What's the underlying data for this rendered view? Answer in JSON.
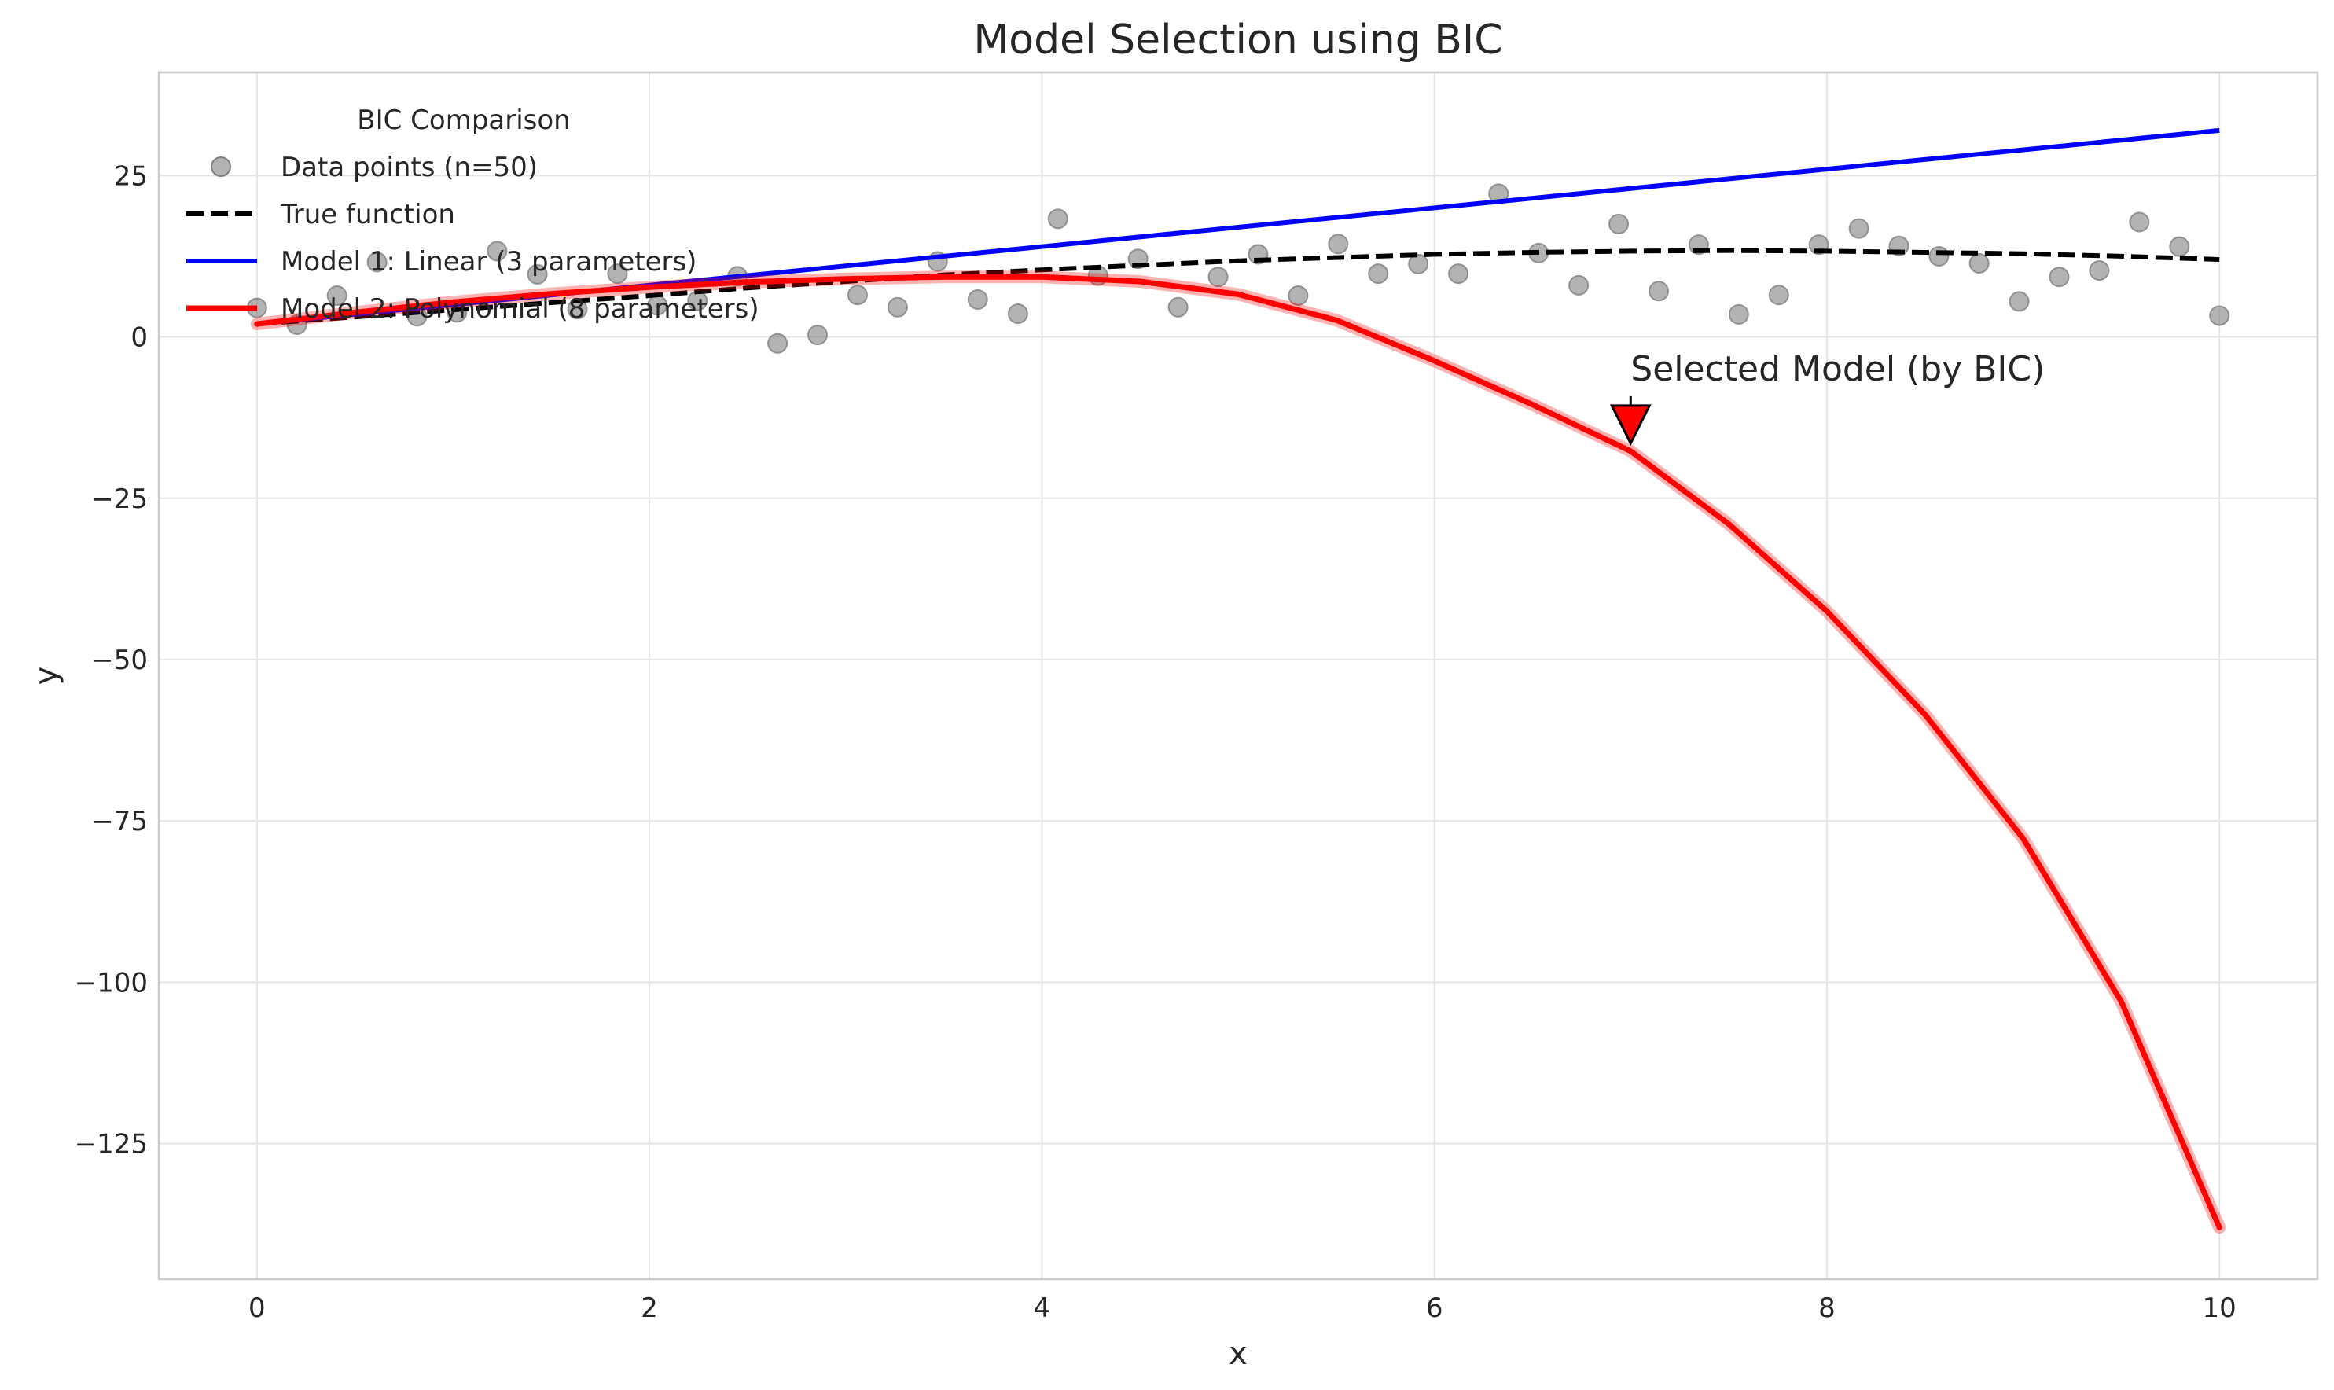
{
  "chart_data": {
    "type": "line",
    "title": "Model Selection using BIC",
    "xlabel": "x",
    "ylabel": "y",
    "xlim": [
      -0.5,
      10.5
    ],
    "ylim": [
      -146,
      41
    ],
    "xticks": [
      0,
      2,
      4,
      6,
      8,
      10
    ],
    "xtick_labels": [
      "0",
      "2",
      "4",
      "6",
      "8",
      "10"
    ],
    "yticks": [
      25,
      0,
      -25,
      -50,
      -75,
      -100,
      -125
    ],
    "ytick_labels": [
      "25",
      "0",
      "−25",
      "−50",
      "−75",
      "−100",
      "−125"
    ],
    "grid": true,
    "legend": {
      "title": "BIC Comparison",
      "placement": "top-left",
      "entries": [
        {
          "label": "Data points (n=50)",
          "marker": "circle",
          "color": "#808080"
        },
        {
          "label": "True function",
          "style": "dashed",
          "color": "#000000"
        },
        {
          "label": "Model 1: Linear (3 parameters)",
          "style": "solid",
          "color": "#0000ff"
        },
        {
          "label": "Model 2: Polynomial (8 parameters)",
          "style": "solid",
          "color": "#ff0000"
        }
      ]
    },
    "series": [
      {
        "name": "Data points (n=50)",
        "kind": "scatter",
        "color": "#808080",
        "x": [
          0,
          0.204,
          0.408,
          0.612,
          0.816,
          1.02,
          1.224,
          1.429,
          1.633,
          1.837,
          2.041,
          2.245,
          2.449,
          2.653,
          2.857,
          3.061,
          3.265,
          3.469,
          3.673,
          3.878,
          4.082,
          4.286,
          4.49,
          4.694,
          4.898,
          5.102,
          5.306,
          5.51,
          5.714,
          5.918,
          6.122,
          6.327,
          6.531,
          6.735,
          6.939,
          7.143,
          7.347,
          7.551,
          7.755,
          7.959,
          8.163,
          8.367,
          8.571,
          8.776,
          8.98,
          9.184,
          9.388,
          9.592,
          9.796,
          10
        ],
        "y": [
          4.5,
          1.9,
          6.4,
          11.6,
          3.2,
          3.8,
          13.3,
          9.7,
          4.3,
          9.8,
          4.9,
          5.6,
          9.4,
          -1,
          0.3,
          6.5,
          4.6,
          11.7,
          5.8,
          3.6,
          18.3,
          9.5,
          12.1,
          4.6,
          9.3,
          12.8,
          6.4,
          14.4,
          9.8,
          11.3,
          9.8,
          22.2,
          13,
          8,
          17.5,
          7.1,
          14.3,
          3.5,
          6.5,
          14.3,
          16.8,
          14.1,
          12.5,
          11.4,
          5.5,
          9.3,
          10.3,
          17.8,
          14,
          3.3
        ]
      },
      {
        "name": "True function",
        "kind": "line",
        "style": "dashed",
        "color": "#000000",
        "x": [
          0,
          0.5,
          1,
          1.5,
          2,
          2.5,
          3,
          3.5,
          4,
          4.5,
          5,
          5.5,
          6,
          6.5,
          7,
          7.5,
          8,
          8.5,
          9,
          9.5,
          10
        ],
        "y": [
          2,
          3.1,
          4.2,
          5.3,
          6.4,
          7.6,
          8.6,
          9.6,
          10.4,
          11.1,
          11.8,
          12.3,
          12.8,
          13.1,
          13.3,
          13.4,
          13.3,
          13.1,
          12.9,
          12.5,
          12
        ]
      },
      {
        "name": "Model 1: Linear (3 parameters)",
        "kind": "line",
        "style": "solid",
        "color": "#0000ff",
        "x": [
          0,
          10
        ],
        "y": [
          2,
          32
        ]
      },
      {
        "name": "Model 2: Polynomial (8 parameters)",
        "kind": "line",
        "style": "solid",
        "color": "#ff0000",
        "x": [
          0,
          0.5,
          1,
          1.5,
          2,
          2.5,
          3,
          3.5,
          4,
          4.5,
          5,
          5.5,
          6,
          6.5,
          7,
          7.5,
          8,
          8.5,
          9,
          9.5,
          10
        ],
        "y": [
          2,
          3.8,
          5.4,
          6.7,
          7.7,
          8.5,
          9,
          9.3,
          9.3,
          8.6,
          6.6,
          2.6,
          -3.7,
          -10.5,
          -17.7,
          -29,
          -42.5,
          -58.5,
          -77.7,
          -103,
          -138
        ]
      }
    ],
    "annotation": {
      "text": "Selected Model (by BIC)",
      "x": 7,
      "y": -16,
      "marker": "triangle-down",
      "color": "#ff0000"
    }
  }
}
